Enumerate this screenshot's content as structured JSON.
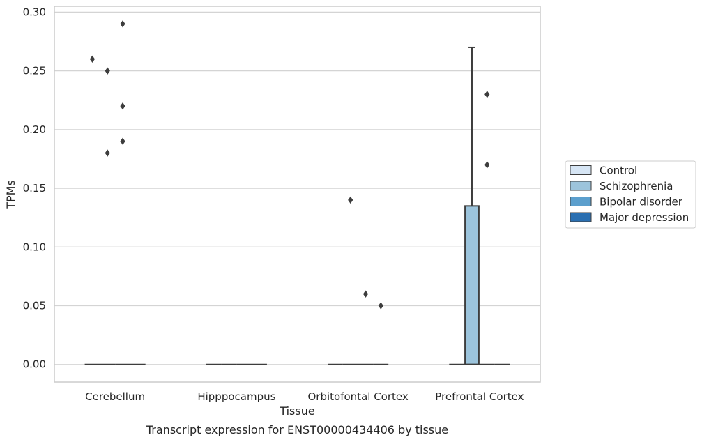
{
  "chart_data": {
    "type": "box",
    "title": "",
    "caption": "Transcript expression for ENST00000434406 by tissue",
    "xlabel": "Tissue",
    "ylabel": "TPMs",
    "ylim": [
      -0.015,
      0.305
    ],
    "yticks": [
      0.0,
      0.05,
      0.1,
      0.15,
      0.2,
      0.25,
      0.3
    ],
    "ytick_labels": [
      "0.00",
      "0.05",
      "0.10",
      "0.15",
      "0.20",
      "0.25",
      "0.30"
    ],
    "grid": "horizontal",
    "categories": [
      "Cerebellum",
      "Hipppocampus",
      "Orbitofontal Cortex",
      "Prefrontal Cortex"
    ],
    "legend": {
      "placement": "right-outside",
      "entries": [
        {
          "name": "Control",
          "color": "#d6e5f4"
        },
        {
          "name": "Schizophrenia",
          "color": "#9cc4dc"
        },
        {
          "name": "Bipolar disorder",
          "color": "#5c9fcd"
        },
        {
          "name": "Major depression",
          "color": "#2a6fb1"
        }
      ]
    },
    "series": [
      {
        "name": "Control",
        "boxes": [
          {
            "category": "Cerebellum",
            "q1": 0,
            "median": 0,
            "q3": 0,
            "whisker_low": 0,
            "whisker_high": 0,
            "outliers": [
              0.26
            ]
          },
          {
            "category": "Hipppocampus",
            "q1": 0,
            "median": 0,
            "q3": 0,
            "whisker_low": 0,
            "whisker_high": 0,
            "outliers": []
          },
          {
            "category": "Orbitofontal Cortex",
            "q1": 0,
            "median": 0,
            "q3": 0,
            "whisker_low": 0,
            "whisker_high": 0,
            "outliers": []
          },
          {
            "category": "Prefrontal Cortex",
            "q1": 0,
            "median": 0,
            "q3": 0,
            "whisker_low": 0,
            "whisker_high": 0,
            "outliers": []
          }
        ]
      },
      {
        "name": "Schizophrenia",
        "boxes": [
          {
            "category": "Cerebellum",
            "q1": 0,
            "median": 0,
            "q3": 0,
            "whisker_low": 0,
            "whisker_high": 0,
            "outliers": [
              0.25,
              0.18
            ]
          },
          {
            "category": "Hipppocampus",
            "q1": 0,
            "median": 0,
            "q3": 0,
            "whisker_low": 0,
            "whisker_high": 0,
            "outliers": []
          },
          {
            "category": "Orbitofontal Cortex",
            "q1": 0,
            "median": 0,
            "q3": 0,
            "whisker_low": 0,
            "whisker_high": 0,
            "outliers": [
              0.14
            ]
          },
          {
            "category": "Prefrontal Cortex",
            "q1": 0,
            "median": 0,
            "q3": 0.135,
            "whisker_low": 0,
            "whisker_high": 0.27,
            "outliers": []
          }
        ]
      },
      {
        "name": "Bipolar disorder",
        "boxes": [
          {
            "category": "Cerebellum",
            "q1": 0,
            "median": 0,
            "q3": 0,
            "whisker_low": 0,
            "whisker_high": 0,
            "outliers": [
              0.29,
              0.22,
              0.19
            ]
          },
          {
            "category": "Hipppocampus",
            "q1": 0,
            "median": 0,
            "q3": 0,
            "whisker_low": 0,
            "whisker_high": 0,
            "outliers": []
          },
          {
            "category": "Orbitofontal Cortex",
            "q1": 0,
            "median": 0,
            "q3": 0,
            "whisker_low": 0,
            "whisker_high": 0,
            "outliers": [
              0.06
            ]
          },
          {
            "category": "Prefrontal Cortex",
            "q1": 0,
            "median": 0,
            "q3": 0,
            "whisker_low": 0,
            "whisker_high": 0,
            "outliers": [
              0.23,
              0.17
            ]
          }
        ]
      },
      {
        "name": "Major depression",
        "boxes": [
          {
            "category": "Cerebellum",
            "q1": 0,
            "median": 0,
            "q3": 0,
            "whisker_low": 0,
            "whisker_high": 0,
            "outliers": []
          },
          {
            "category": "Hipppocampus",
            "q1": 0,
            "median": 0,
            "q3": 0,
            "whisker_low": 0,
            "whisker_high": 0,
            "outliers": []
          },
          {
            "category": "Orbitofontal Cortex",
            "q1": 0,
            "median": 0,
            "q3": 0,
            "whisker_low": 0,
            "whisker_high": 0,
            "outliers": [
              0.05
            ]
          },
          {
            "category": "Prefrontal Cortex",
            "q1": 0,
            "median": 0,
            "q3": 0,
            "whisker_low": 0,
            "whisker_high": 0,
            "outliers": []
          }
        ]
      }
    ]
  },
  "colors": {
    "grid": "#d4d4d4",
    "frame": "#cccccc",
    "box_edge": "#3d3d3d",
    "text": "#262626"
  }
}
